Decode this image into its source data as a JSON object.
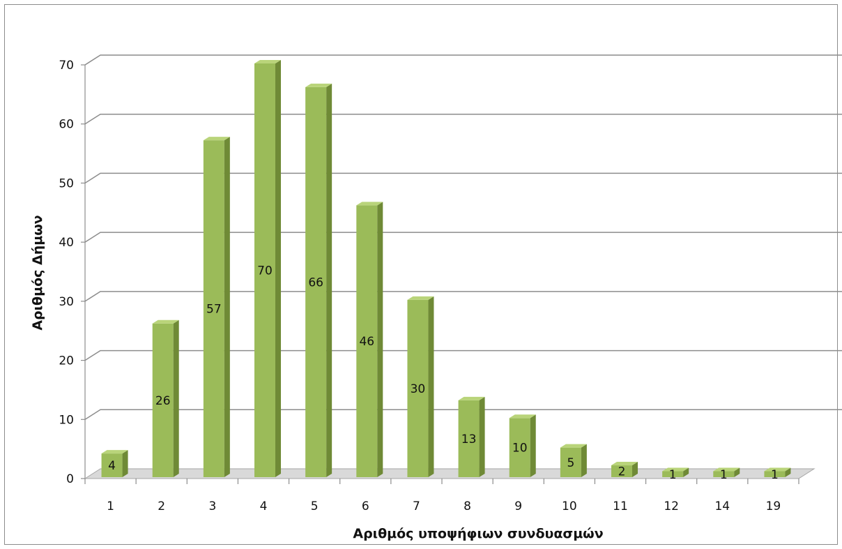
{
  "chart_data": {
    "type": "bar",
    "categories": [
      "1",
      "2",
      "3",
      "4",
      "5",
      "6",
      "7",
      "8",
      "9",
      "10",
      "11",
      "12",
      "14",
      "19"
    ],
    "values": [
      4,
      26,
      57,
      70,
      66,
      46,
      30,
      13,
      10,
      5,
      2,
      1,
      1,
      1
    ],
    "xlabel": "Αριθμός υποψήφιων συνδυασμών",
    "ylabel": "Αριθμός Δήμων",
    "ylim": [
      0,
      70
    ],
    "yticks": [
      0,
      10,
      20,
      30,
      40,
      50,
      60,
      70
    ],
    "grid": true,
    "data_labels": true,
    "bar_style": "3d-column",
    "colors": {
      "bar_front": "#9bbb59",
      "bar_side": "#6f8a36",
      "bar_top": "#b9d47a",
      "gridline": "#8c8c8c",
      "floor": "#d9d9d9"
    }
  }
}
